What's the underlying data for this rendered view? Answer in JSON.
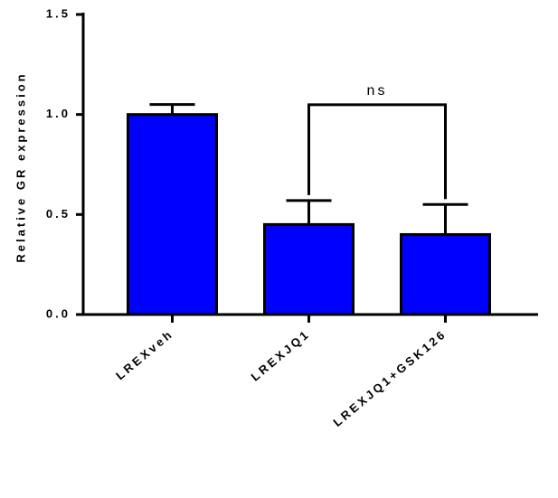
{
  "chart_data": {
    "type": "bar",
    "y_label": "Relative GR expression",
    "categories": [
      "LREXveh",
      "LREXJQ1",
      "LREXJQ1+GSK126"
    ],
    "values": [
      1.0,
      0.45,
      0.4
    ],
    "errors": [
      0.05,
      0.12,
      0.15
    ],
    "color": "#0000ff",
    "ylim": [
      0,
      1.5
    ],
    "yticks": [
      {
        "value": 0,
        "label": "0.0"
      },
      0.5,
      {
        "value": 1,
        "label": "1.0"
      },
      {
        "value": 1.5,
        "label": "1.5"
      }
    ],
    "annotation": "ns"
  }
}
